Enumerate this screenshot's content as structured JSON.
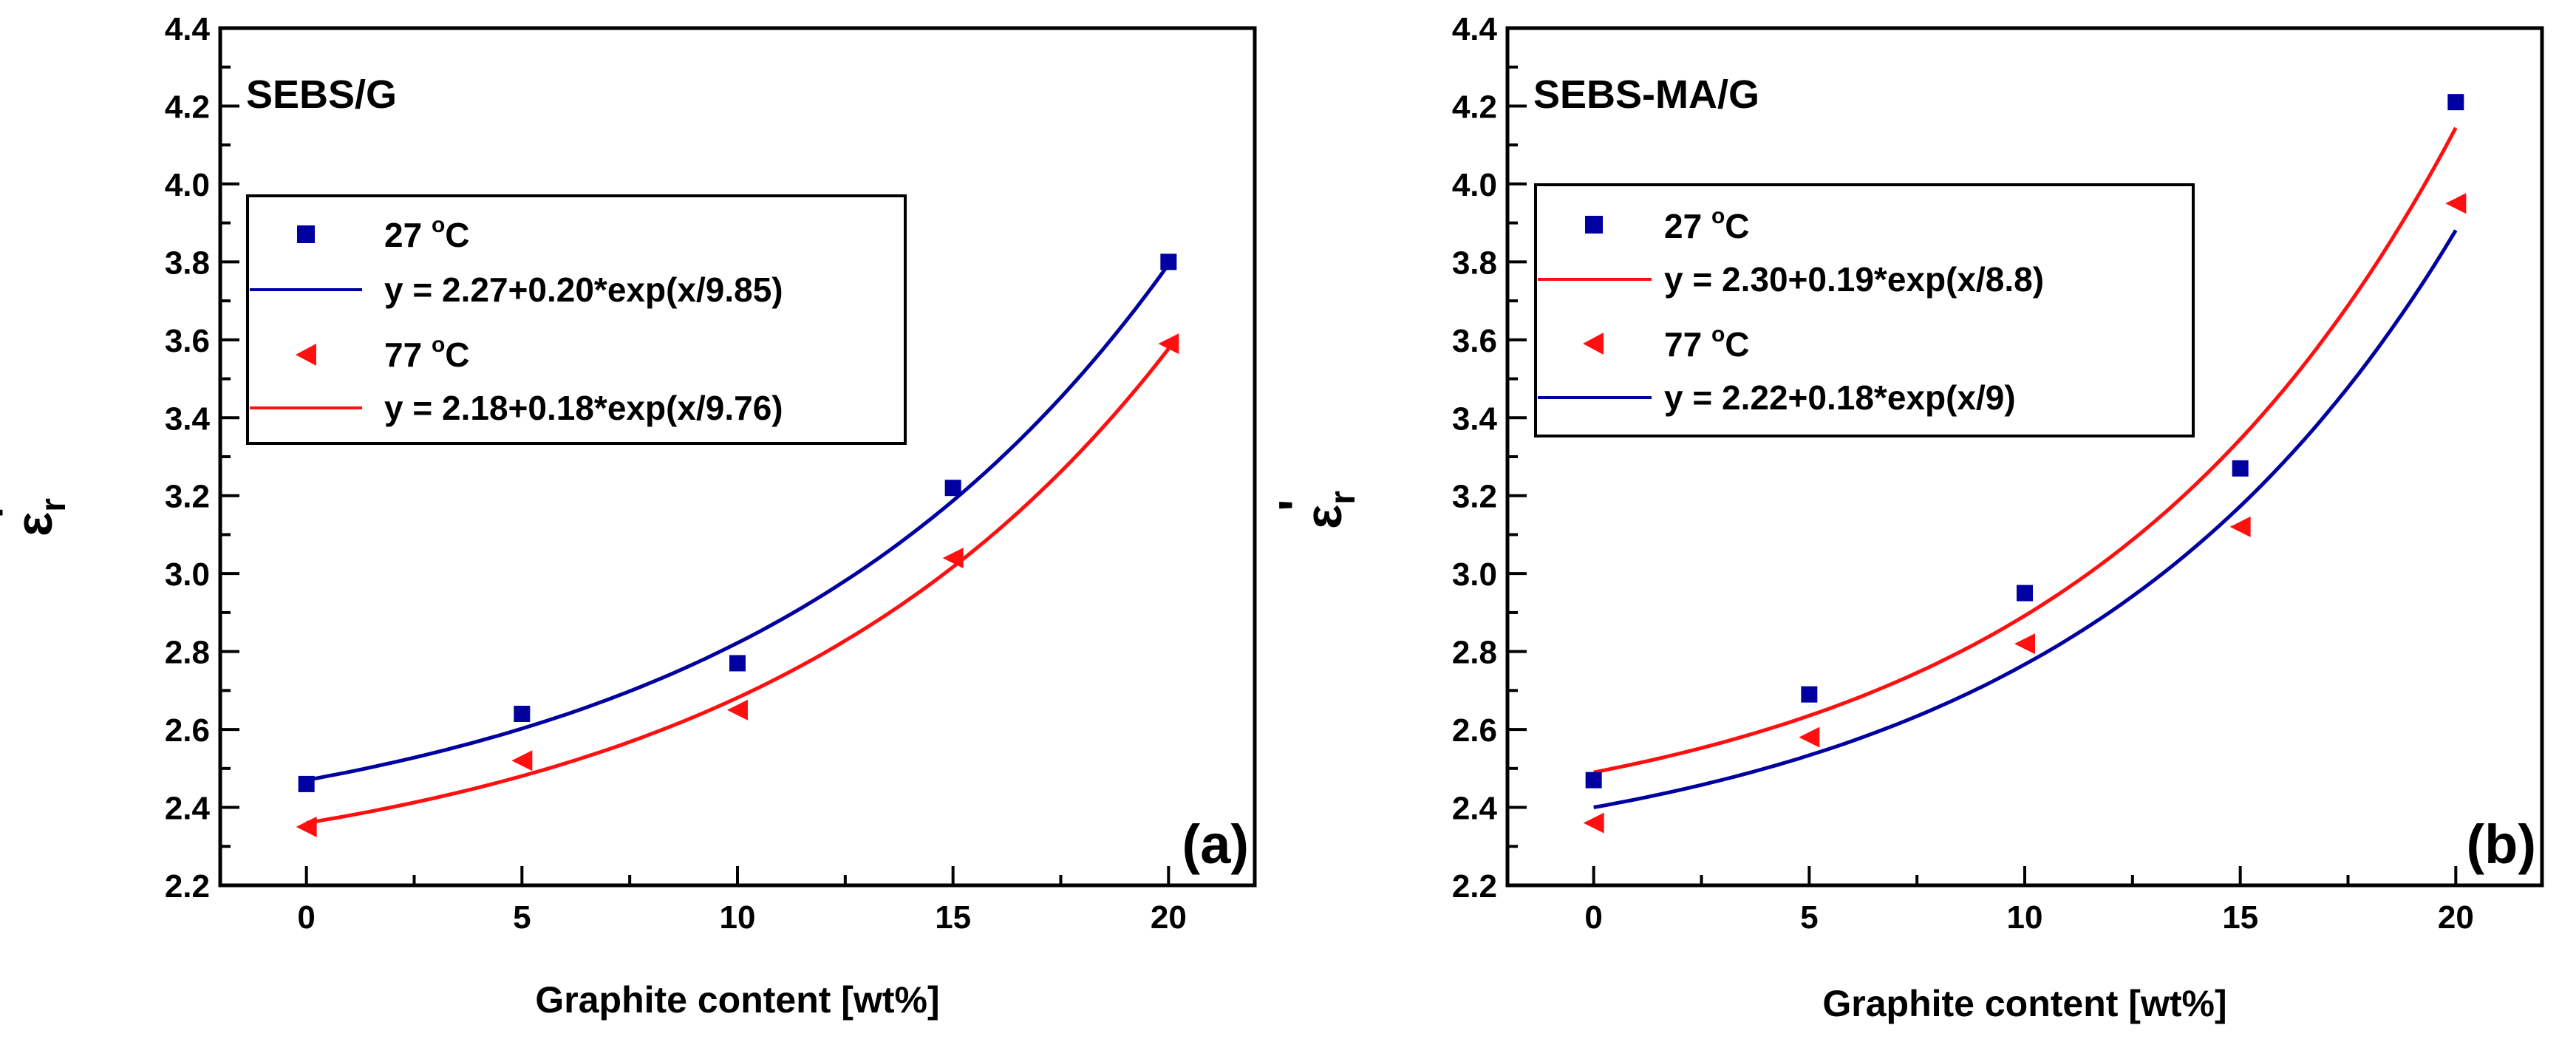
{
  "colors": {
    "blue": "#0000a0",
    "red": "#ff1010",
    "axis": "#000000"
  },
  "chart_data": [
    {
      "type": "scatter",
      "title": "SEBS/G",
      "panel_label": "(a)",
      "xlabel": "Graphite content [wt%]",
      "ylabel": "ε",
      "ylabel_sub": "r",
      "ylabel_prime": "'",
      "xlim": [
        -2,
        22
      ],
      "ylim": [
        2.2,
        4.4
      ],
      "xticks": [
        0,
        5,
        10,
        15,
        20
      ],
      "xtick_labels": [
        "0",
        "5",
        "10",
        "15",
        "20"
      ],
      "yticks": [
        2.2,
        2.4,
        2.6,
        2.8,
        3.0,
        3.2,
        3.4,
        3.6,
        3.8,
        4.0,
        4.2,
        4.4
      ],
      "ytick_labels": [
        "2.2",
        "2.4",
        "2.6",
        "2.8",
        "3.0",
        "3.2",
        "3.4",
        "3.6",
        "3.8",
        "4.0",
        "4.2",
        "4.4"
      ],
      "series": [
        {
          "name": "27 °C",
          "name_value": "27",
          "name_unit": "C",
          "marker": "square",
          "color": "#0000a0",
          "x": [
            0,
            5,
            10,
            15,
            20
          ],
          "y": [
            2.46,
            2.64,
            2.77,
            3.22,
            3.8
          ]
        },
        {
          "name": "77 °C",
          "name_value": "77",
          "name_unit": "C",
          "marker": "triangle-left",
          "color": "#ff1010",
          "x": [
            0,
            5,
            10,
            15,
            20
          ],
          "y": [
            2.35,
            2.52,
            2.65,
            3.04,
            3.59
          ]
        }
      ],
      "fits": [
        {
          "label": "y = 2.27+0.20*exp(x/9.85)",
          "a": 2.27,
          "b": 0.2,
          "c": 9.85,
          "color": "#0000a0"
        },
        {
          "label": "y = 2.18+0.18*exp(x/9.76)",
          "a": 2.18,
          "b": 0.18,
          "c": 9.76,
          "color": "#ff1010"
        }
      ],
      "legend": [
        "27 °C",
        "y = 2.27+0.20*exp(x/9.85)",
        "77 °C",
        "y = 2.18+0.18*exp(x/9.76)"
      ],
      "legend_position": "upper-left"
    },
    {
      "type": "scatter",
      "title": "SEBS-MA/G",
      "panel_label": "(b)",
      "xlabel": "Graphite content [wt%]",
      "ylabel": "ε",
      "ylabel_sub": "r",
      "ylabel_prime": "'",
      "xlim": [
        -2,
        22
      ],
      "ylim": [
        2.2,
        4.4
      ],
      "xticks": [
        0,
        5,
        10,
        15,
        20
      ],
      "xtick_labels": [
        "0",
        "5",
        "10",
        "15",
        "20"
      ],
      "yticks": [
        2.2,
        2.4,
        2.6,
        2.8,
        3.0,
        3.2,
        3.4,
        3.6,
        3.8,
        4.0,
        4.2,
        4.4
      ],
      "ytick_labels": [
        "2.2",
        "2.4",
        "2.6",
        "2.8",
        "3.0",
        "3.2",
        "3.4",
        "3.6",
        "3.8",
        "4.0",
        "4.2",
        "4.4"
      ],
      "series": [
        {
          "name": "27 °C",
          "name_value": "27",
          "name_unit": "C",
          "marker": "square",
          "color": "#0000a0",
          "x": [
            0,
            5,
            10,
            15,
            20
          ],
          "y": [
            2.47,
            2.69,
            2.95,
            3.27,
            4.21
          ]
        },
        {
          "name": "77 °C",
          "name_value": "77",
          "name_unit": "C",
          "marker": "triangle-left",
          "color": "#ff1010",
          "x": [
            0,
            5,
            10,
            15,
            20
          ],
          "y": [
            2.36,
            2.58,
            2.82,
            3.12,
            3.95
          ]
        }
      ],
      "fits": [
        {
          "label": "y = 2.30+0.19*exp(x/8.8)",
          "a": 2.3,
          "b": 0.19,
          "c": 8.8,
          "color": "#ff1010"
        },
        {
          "label": "y = 2.22+0.18*exp(x/9)",
          "a": 2.22,
          "b": 0.18,
          "c": 9,
          "color": "#0000a0"
        }
      ],
      "legend": [
        "27 °C",
        "y = 2.30+0.19*exp(x/8.8)",
        "77 °C",
        "y = 2.22+0.18*exp(x/9)"
      ],
      "legend_position": "upper-left"
    }
  ]
}
